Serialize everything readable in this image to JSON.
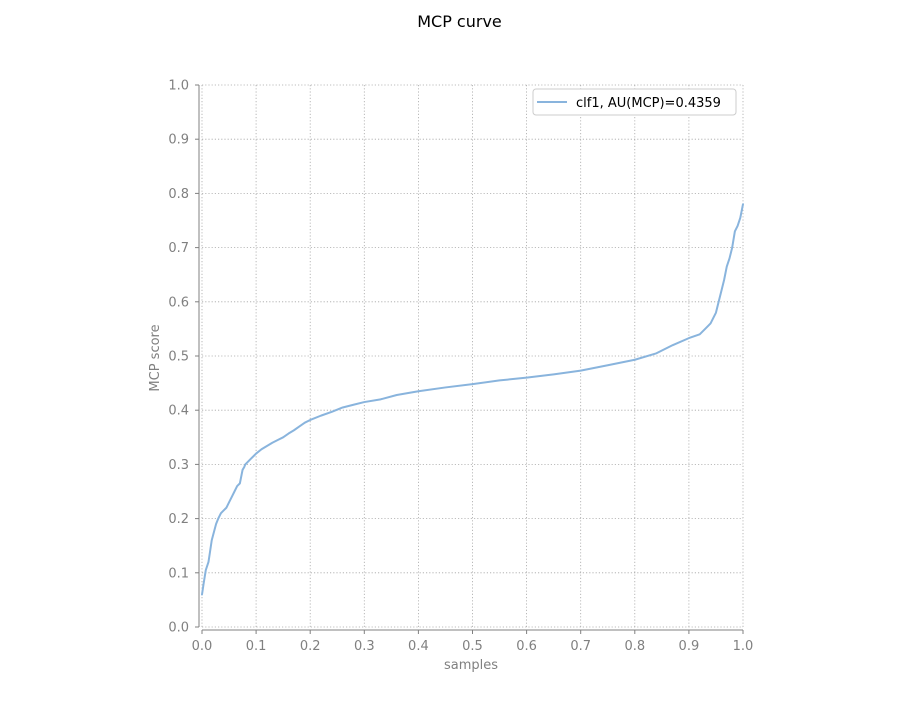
{
  "chart_data": {
    "type": "line",
    "title": "MCP curve",
    "xlabel": "samples",
    "ylabel": "MCP score",
    "xlim": [
      0.0,
      1.0
    ],
    "ylim": [
      0.0,
      1.0
    ],
    "xticks": [
      "0.0",
      "0.1",
      "0.2",
      "0.3",
      "0.4",
      "0.5",
      "0.6",
      "0.7",
      "0.8",
      "0.9",
      "1.0"
    ],
    "yticks": [
      "0.0",
      "0.1",
      "0.2",
      "0.3",
      "0.4",
      "0.5",
      "0.6",
      "0.7",
      "0.8",
      "0.9",
      "1.0"
    ],
    "grid": true,
    "legend_position": "top-right",
    "colors": {
      "series": "#89b4dd",
      "axis": "#808080",
      "grid": "#a8a8a8",
      "legend_border": "#cccccc"
    },
    "series": [
      {
        "name": "clf1, AU(MCP)=0.4359",
        "x": [
          0.0,
          0.003,
          0.007,
          0.012,
          0.015,
          0.018,
          0.022,
          0.026,
          0.03,
          0.035,
          0.04,
          0.045,
          0.05,
          0.055,
          0.06,
          0.065,
          0.07,
          0.075,
          0.078,
          0.08,
          0.085,
          0.09,
          0.1,
          0.11,
          0.12,
          0.13,
          0.14,
          0.15,
          0.16,
          0.17,
          0.18,
          0.19,
          0.2,
          0.22,
          0.24,
          0.26,
          0.28,
          0.3,
          0.33,
          0.36,
          0.4,
          0.45,
          0.5,
          0.55,
          0.6,
          0.65,
          0.7,
          0.75,
          0.8,
          0.84,
          0.87,
          0.9,
          0.92,
          0.93,
          0.94,
          0.95,
          0.955,
          0.96,
          0.965,
          0.97,
          0.975,
          0.98,
          0.985,
          0.99,
          0.995,
          1.0
        ],
        "y": [
          0.06,
          0.08,
          0.105,
          0.12,
          0.14,
          0.16,
          0.175,
          0.19,
          0.2,
          0.21,
          0.215,
          0.22,
          0.23,
          0.24,
          0.25,
          0.26,
          0.265,
          0.29,
          0.295,
          0.3,
          0.305,
          0.31,
          0.32,
          0.328,
          0.334,
          0.34,
          0.345,
          0.35,
          0.357,
          0.363,
          0.37,
          0.377,
          0.382,
          0.39,
          0.397,
          0.405,
          0.41,
          0.415,
          0.42,
          0.428,
          0.435,
          0.442,
          0.448,
          0.455,
          0.46,
          0.466,
          0.473,
          0.483,
          0.493,
          0.505,
          0.52,
          0.533,
          0.54,
          0.55,
          0.56,
          0.58,
          0.6,
          0.62,
          0.64,
          0.665,
          0.68,
          0.7,
          0.73,
          0.74,
          0.755,
          0.78
        ]
      }
    ]
  }
}
